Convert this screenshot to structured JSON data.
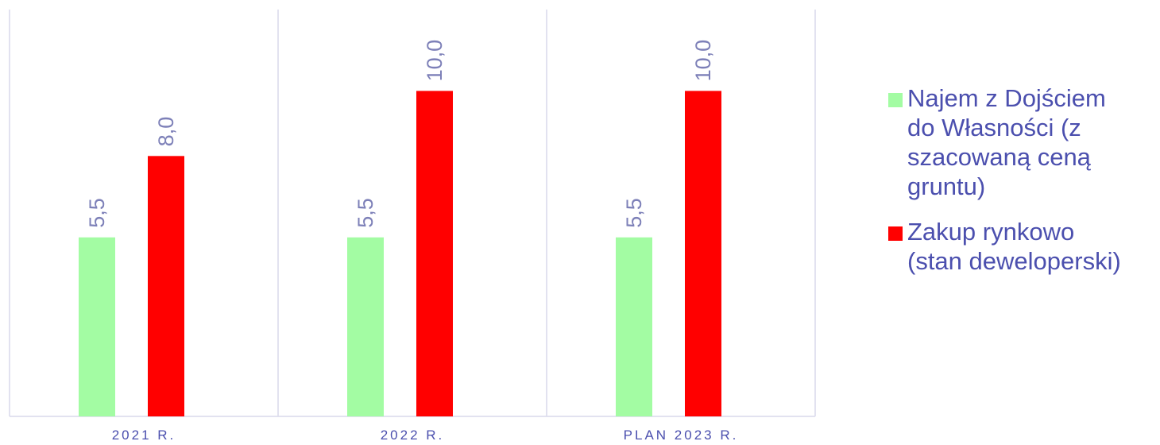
{
  "chart_data": {
    "type": "bar",
    "categories": [
      "2021 R.",
      "2022 R.",
      "PLAN 2023 R."
    ],
    "series": [
      {
        "name": "Najem z Dojściem do Własności (z szacowaną ceną gruntu)",
        "legend_lines": "Najem z Dojściem\ndo Własności (z\nszacowaną ceną\ngruntu)",
        "values": [
          5.5,
          5.5,
          5.5
        ],
        "data_labels": [
          "5,5",
          "5,5",
          "5,5"
        ],
        "color": "#a3fca3"
      },
      {
        "name": "Zakup rynkowo (stan deweloperski)",
        "legend_lines": "Zakup rynkowo\n(stan deweloperski)",
        "values": [
          8.0,
          10.0,
          10.0
        ],
        "data_labels": [
          "8,0",
          "10,0",
          "10,0"
        ],
        "color": "#ff0000"
      }
    ],
    "ylim": [
      0,
      12.5
    ],
    "grid": false,
    "legend": "right",
    "colors": {
      "label_text": "#7d80b8",
      "axis_text": "#4b4fae",
      "separator": "#d9d9ec"
    }
  }
}
